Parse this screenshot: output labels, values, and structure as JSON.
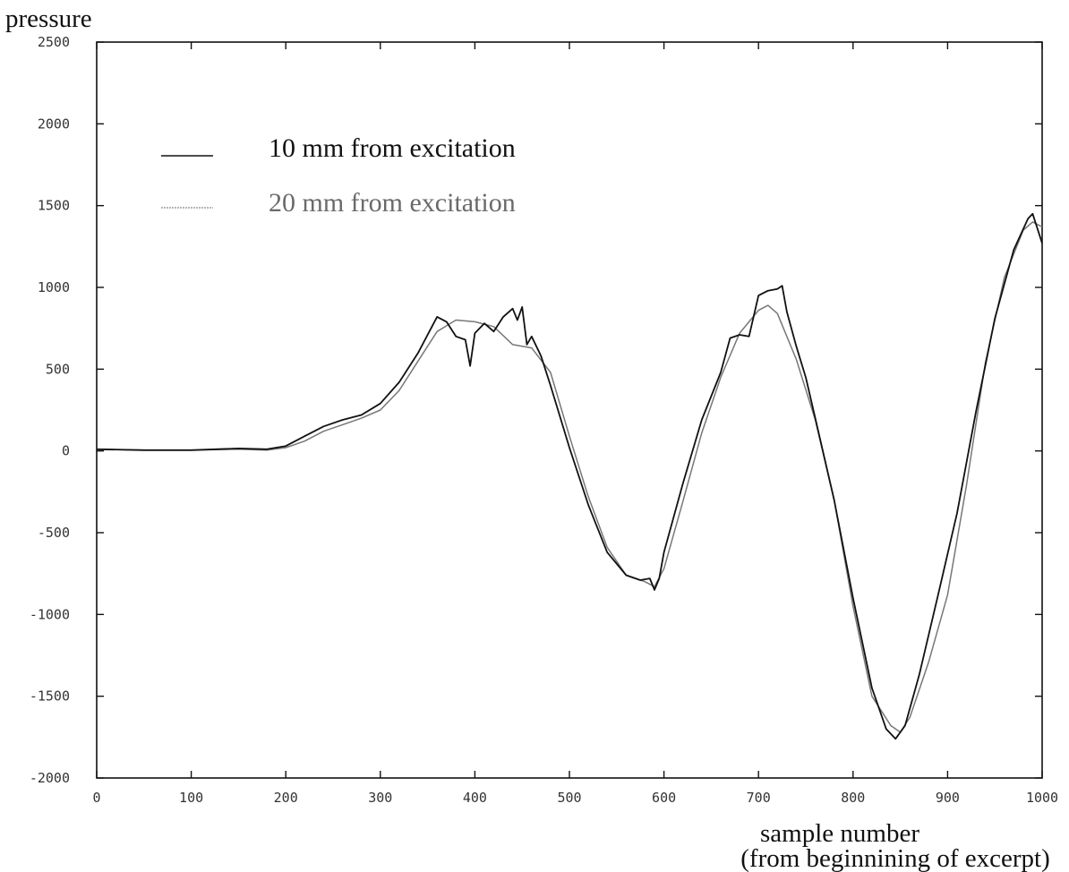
{
  "chart_data": {
    "type": "line",
    "title": "",
    "ylabel": "pressure",
    "xlabel_line1": "sample number",
    "xlabel_line2": "(from beginnining of excerpt)",
    "xlim": [
      0,
      1000
    ],
    "ylim": [
      -2000,
      2500
    ],
    "xticks": [
      0,
      100,
      200,
      300,
      400,
      500,
      600,
      700,
      800,
      900,
      1000
    ],
    "yticks": [
      2500,
      2000,
      1500,
      1000,
      500,
      0,
      -500,
      -1000,
      -1500,
      -2000
    ],
    "ytick_labels": [
      "2500",
      "2000",
      "1500",
      "1000",
      "500",
      "0",
      "-500",
      "-1000",
      "-1500",
      "-2000"
    ],
    "xtick_labels": [
      "0",
      "100",
      "200",
      "300",
      "400",
      "500",
      "600",
      "700",
      "800",
      "900",
      "1000"
    ],
    "grid": false,
    "legend_position": "top-left",
    "series": [
      {
        "name": "10 mm from excitation",
        "color": "#111111",
        "x": [
          0,
          50,
          100,
          150,
          180,
          200,
          220,
          240,
          260,
          280,
          300,
          320,
          340,
          360,
          370,
          380,
          390,
          395,
          400,
          410,
          420,
          430,
          440,
          445,
          450,
          455,
          460,
          470,
          480,
          500,
          520,
          540,
          560,
          575,
          585,
          590,
          595,
          600,
          620,
          640,
          660,
          670,
          680,
          690,
          700,
          710,
          720,
          725,
          730,
          740,
          750,
          760,
          780,
          800,
          820,
          835,
          845,
          855,
          870,
          890,
          910,
          930,
          950,
          970,
          985,
          990,
          1000
        ],
        "y": [
          10,
          5,
          5,
          15,
          10,
          30,
          90,
          150,
          190,
          220,
          290,
          420,
          600,
          820,
          790,
          700,
          680,
          520,
          720,
          780,
          730,
          820,
          870,
          800,
          880,
          650,
          700,
          580,
          400,
          20,
          -330,
          -620,
          -760,
          -790,
          -780,
          -850,
          -780,
          -620,
          -200,
          190,
          480,
          690,
          710,
          700,
          950,
          980,
          990,
          1010,
          850,
          640,
          450,
          200,
          -300,
          -900,
          -1450,
          -1700,
          -1760,
          -1680,
          -1370,
          -880,
          -380,
          240,
          810,
          1230,
          1420,
          1450,
          1270
        ]
      },
      {
        "name": "20 mm from excitation",
        "color": "#777777",
        "x": [
          0,
          50,
          100,
          150,
          180,
          200,
          220,
          240,
          260,
          280,
          300,
          320,
          340,
          360,
          380,
          400,
          420,
          440,
          460,
          480,
          500,
          520,
          540,
          560,
          580,
          590,
          600,
          620,
          640,
          660,
          680,
          700,
          710,
          720,
          740,
          760,
          780,
          800,
          820,
          840,
          850,
          860,
          880,
          900,
          920,
          940,
          960,
          980,
          990,
          1000
        ],
        "y": [
          10,
          5,
          5,
          10,
          5,
          20,
          60,
          120,
          160,
          200,
          250,
          370,
          550,
          730,
          800,
          790,
          760,
          650,
          630,
          480,
          90,
          -280,
          -590,
          -760,
          -800,
          -830,
          -720,
          -310,
          110,
          450,
          720,
          860,
          890,
          840,
          560,
          190,
          -300,
          -950,
          -1500,
          -1680,
          -1720,
          -1630,
          -1290,
          -880,
          -210,
          540,
          1060,
          1350,
          1400,
          1370
        ]
      }
    ]
  }
}
